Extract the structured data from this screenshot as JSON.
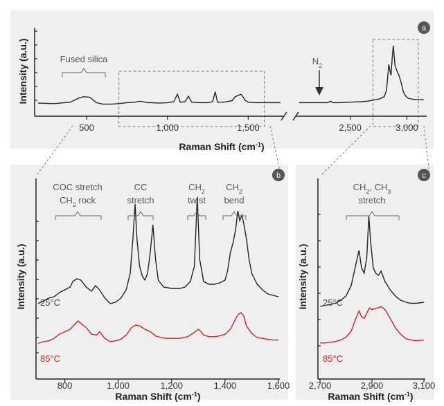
{
  "colors": {
    "panel_bg": "#efefef",
    "line_25c": "#222222",
    "line_85c": "#d0202a",
    "badge": "#555555",
    "bracket": "#666666",
    "dashed": "#777777"
  },
  "chart_data": [
    {
      "panel": "a",
      "type": "line",
      "xlabel": "Raman Shift (cm-1)",
      "xlabel_main": "Raman Shift (cm",
      "xlabel_sup": "-1",
      "xlabel_close": ")",
      "ylabel": "Intensity (a.u.)",
      "broken_x_axis": true,
      "xlim_left": [
        200,
        1700
      ],
      "xlim_right": [
        2050,
        3150
      ],
      "xticks_left": [
        500,
        1000,
        1500
      ],
      "xtick_labels_left": [
        "500",
        "1,000",
        "1,500"
      ],
      "xticks_right": [
        2500,
        3000
      ],
      "xtick_labels_right": [
        "2,500",
        "3,000"
      ],
      "annotations": {
        "fused_silica": "Fused silica",
        "n2_main": "N",
        "n2_sub": "2"
      },
      "series": [
        {
          "color": "#222222",
          "x": [
            200,
            300,
            400,
            450,
            480,
            520,
            560,
            600,
            650,
            700,
            750,
            800,
            830,
            880,
            900,
            950,
            1000,
            1040,
            1062,
            1080,
            1110,
            1130,
            1150,
            1200,
            1250,
            1280,
            1296,
            1310,
            1350,
            1400,
            1420,
            1440,
            1455,
            1465,
            1480,
            1500,
            1550,
            1600,
            1650,
            1700
          ],
          "y": [
            0.04,
            0.03,
            0.06,
            0.14,
            0.17,
            0.16,
            0.05,
            0.02,
            0.02,
            0.03,
            0.05,
            0.06,
            0.08,
            0.05,
            0.05,
            0.04,
            0.05,
            0.07,
            0.22,
            0.06,
            0.07,
            0.18,
            0.06,
            0.05,
            0.05,
            0.07,
            0.27,
            0.06,
            0.06,
            0.09,
            0.17,
            0.2,
            0.22,
            0.18,
            0.1,
            0.06,
            0.05,
            0.05,
            0.05,
            0.05
          ]
        },
        {
          "color": "#222222",
          "x": [
            2050,
            2200,
            2300,
            2328,
            2345,
            2400,
            2500,
            2600,
            2650,
            2700,
            2750,
            2800,
            2820,
            2840,
            2850,
            2860,
            2870,
            2880,
            2895,
            2910,
            2930,
            2950,
            2970,
            2990,
            3010,
            3050,
            3100,
            3150
          ],
          "y": [
            0.05,
            0.05,
            0.05,
            0.08,
            0.05,
            0.05,
            0.06,
            0.07,
            0.08,
            0.1,
            0.12,
            0.17,
            0.3,
            0.82,
            0.7,
            0.6,
            0.95,
            1.2,
            0.8,
            0.7,
            0.6,
            0.45,
            0.26,
            0.18,
            0.14,
            0.12,
            0.11,
            0.11
          ]
        }
      ]
    },
    {
      "panel": "b",
      "type": "line",
      "xlabel": "Raman Shift (cm-1)",
      "xlabel_main": "Raman Shift (cm",
      "xlabel_sup": "-1",
      "xlabel_close": ")",
      "ylabel": "Intensity (a.u.)",
      "xlim": [
        700,
        1600
      ],
      "xticks": [
        800,
        1000,
        1200,
        1400,
        1600
      ],
      "xtick_labels": [
        "800",
        "1,000",
        "1,200",
        "1,400",
        "1,600"
      ],
      "annotations": [
        {
          "lines": [
            "COC stretch",
            "CH2 rock"
          ],
          "x_from": 790,
          "x_to": 960
        },
        {
          "lines": [
            "CC",
            "stretch"
          ],
          "x_from": 1040,
          "x_to": 1130
        },
        {
          "lines": [
            "CH2",
            "twist"
          ],
          "x_from": 1275,
          "x_to": 1315
        },
        {
          "lines": [
            "CH2",
            "bend"
          ],
          "x_from": 1410,
          "x_to": 1480
        }
      ],
      "annotation_text": {
        "a1_l1": "COC stretch",
        "a1_l2_main": "CH",
        "a1_l2_sub": "2",
        "a1_l2_rest": " rock",
        "a2_l1": "CC",
        "a2_l2": "stretch",
        "a3_l1_main": "CH",
        "a3_l1_sub": "2",
        "a3_l2": "twist",
        "a4_l1_main": "CH",
        "a4_l1_sub": "2",
        "a4_l2": "bend"
      },
      "series": [
        {
          "name": "25°C",
          "color": "#222222",
          "x": [
            700,
            720,
            740,
            760,
            780,
            800,
            820,
            830,
            845,
            860,
            880,
            900,
            915,
            930,
            950,
            970,
            990,
            1010,
            1030,
            1045,
            1055,
            1063,
            1070,
            1080,
            1090,
            1100,
            1110,
            1120,
            1130,
            1140,
            1150,
            1170,
            1200,
            1230,
            1250,
            1270,
            1285,
            1296,
            1305,
            1320,
            1340,
            1360,
            1380,
            1400,
            1410,
            1420,
            1430,
            1440,
            1448,
            1455,
            1463,
            1470,
            1480,
            1490,
            1500,
            1520,
            1540,
            1560,
            1580,
            1600
          ],
          "y": [
            0.08,
            0.1,
            0.12,
            0.13,
            0.16,
            0.18,
            0.2,
            0.24,
            0.26,
            0.25,
            0.2,
            0.17,
            0.21,
            0.18,
            0.12,
            0.08,
            0.09,
            0.12,
            0.18,
            0.3,
            0.55,
            0.8,
            0.55,
            0.35,
            0.28,
            0.25,
            0.3,
            0.45,
            0.65,
            0.4,
            0.25,
            0.2,
            0.19,
            0.19,
            0.2,
            0.24,
            0.35,
            0.85,
            0.4,
            0.24,
            0.22,
            0.22,
            0.23,
            0.25,
            0.32,
            0.45,
            0.52,
            0.62,
            0.75,
            0.68,
            0.72,
            0.66,
            0.55,
            0.4,
            0.3,
            0.22,
            0.18,
            0.15,
            0.14,
            0.13
          ]
        },
        {
          "name": "85°C",
          "color": "#d0202a",
          "x": [
            700,
            720,
            740,
            760,
            780,
            800,
            820,
            840,
            850,
            860,
            880,
            900,
            920,
            930,
            950,
            970,
            990,
            1010,
            1030,
            1050,
            1065,
            1080,
            1100,
            1120,
            1140,
            1160,
            1180,
            1200,
            1230,
            1260,
            1280,
            1300,
            1310,
            1320,
            1340,
            1360,
            1380,
            1400,
            1420,
            1440,
            1450,
            1460,
            1470,
            1480,
            1500,
            1520,
            1540,
            1560,
            1580,
            1600
          ],
          "y": [
            0.03,
            0.05,
            0.06,
            0.09,
            0.14,
            0.17,
            0.2,
            0.27,
            0.3,
            0.27,
            0.22,
            0.14,
            0.13,
            0.17,
            0.09,
            0.05,
            0.06,
            0.08,
            0.13,
            0.22,
            0.25,
            0.24,
            0.2,
            0.17,
            0.12,
            0.1,
            0.09,
            0.09,
            0.09,
            0.11,
            0.15,
            0.2,
            0.17,
            0.13,
            0.11,
            0.11,
            0.12,
            0.14,
            0.2,
            0.33,
            0.38,
            0.4,
            0.36,
            0.24,
            0.15,
            0.1,
            0.09,
            0.08,
            0.07,
            0.07
          ]
        }
      ]
    },
    {
      "panel": "c",
      "type": "line",
      "xlabel": "Raman Shift (cm-1)",
      "xlabel_main": "Raman Shift (cm",
      "xlabel_sup": "-1",
      "xlabel_close": ")",
      "ylabel": "Intensity (a.u.)",
      "xlim": [
        2700,
        3100
      ],
      "xticks": [
        2700,
        2900,
        3100
      ],
      "xtick_labels": [
        "2,700",
        "2,900",
        "3,100"
      ],
      "annotations": [
        {
          "lines": [
            "CH2, CH3",
            "stretch"
          ],
          "x_from": 2780,
          "x_to": 3010
        }
      ],
      "annotation_text": {
        "l1_a": "CH",
        "l1_a_sub": "2",
        "l1_b": ", CH",
        "l1_b_sub": "3",
        "l2": "stretch"
      },
      "series": [
        {
          "name": "25°C",
          "color": "#222222",
          "x": [
            2700,
            2720,
            2740,
            2760,
            2780,
            2800,
            2820,
            2835,
            2850,
            2860,
            2870,
            2880,
            2888,
            2895,
            2905,
            2915,
            2925,
            2935,
            2950,
            2970,
            2990,
            3010,
            3030,
            3050,
            3070,
            3100
          ],
          "y": [
            0.08,
            0.09,
            0.1,
            0.11,
            0.14,
            0.18,
            0.28,
            0.45,
            0.62,
            0.45,
            0.4,
            0.55,
            0.95,
            0.7,
            0.45,
            0.4,
            0.38,
            0.42,
            0.32,
            0.24,
            0.18,
            0.14,
            0.12,
            0.11,
            0.11,
            0.12
          ]
        },
        {
          "name": "85°C",
          "color": "#d0202a",
          "x": [
            2700,
            2720,
            2740,
            2760,
            2780,
            2800,
            2820,
            2835,
            2850,
            2860,
            2870,
            2880,
            2890,
            2900,
            2920,
            2935,
            2950,
            2970,
            2990,
            3010,
            3030,
            3050,
            3070,
            3100
          ],
          "y": [
            0.04,
            0.04,
            0.05,
            0.06,
            0.08,
            0.12,
            0.2,
            0.35,
            0.48,
            0.4,
            0.38,
            0.45,
            0.52,
            0.5,
            0.52,
            0.54,
            0.5,
            0.38,
            0.25,
            0.16,
            0.1,
            0.08,
            0.07,
            0.08
          ]
        }
      ]
    }
  ],
  "badges": {
    "a": "a",
    "b": "b",
    "c": "c"
  },
  "temperature_labels": {
    "t25": "25°C",
    "t85": "85°C"
  }
}
